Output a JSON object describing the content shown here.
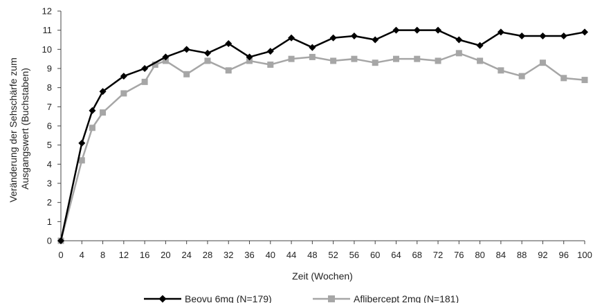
{
  "chart_data": {
    "type": "line",
    "title": "",
    "xlabel": "Zeit (Wochen)",
    "ylabel_lines": [
      "Veränderung der Sehschärfe zum",
      "Ausgangswert (Buchstaben)"
    ],
    "xlim": [
      0,
      100
    ],
    "ylim": [
      0,
      12
    ],
    "x_ticks": [
      0,
      4,
      8,
      12,
      16,
      20,
      24,
      28,
      32,
      36,
      40,
      44,
      48,
      52,
      56,
      60,
      64,
      68,
      72,
      76,
      80,
      84,
      88,
      92,
      96,
      100
    ],
    "y_ticks": [
      0,
      1,
      2,
      3,
      4,
      5,
      6,
      7,
      8,
      9,
      10,
      11,
      12
    ],
    "grid": false,
    "legend_position": "bottom",
    "series": [
      {
        "name": "Beovu 6mg (N=179)",
        "color": "#000000",
        "marker": "diamond",
        "x": [
          0,
          4,
          6,
          8,
          12,
          16,
          20,
          24,
          28,
          32,
          36,
          40,
          44,
          48,
          52,
          56,
          60,
          64,
          68,
          72,
          76,
          80,
          84,
          88,
          92,
          96,
          100
        ],
        "y": [
          0,
          5.1,
          6.8,
          7.8,
          8.6,
          9.0,
          9.6,
          10.0,
          9.8,
          10.3,
          9.6,
          9.9,
          10.6,
          10.1,
          10.6,
          10.7,
          10.5,
          11.0,
          11.0,
          11.0,
          10.5,
          10.2,
          10.9,
          10.7,
          10.7,
          10.7,
          10.9
        ]
      },
      {
        "name": "Aflibercept 2mg (N=181)",
        "color": "#a6a6a6",
        "marker": "square",
        "x": [
          0,
          4,
          6,
          8,
          12,
          16,
          18,
          20,
          24,
          28,
          32,
          36,
          40,
          44,
          48,
          52,
          56,
          60,
          64,
          68,
          72,
          76,
          80,
          84,
          88,
          92,
          96,
          100
        ],
        "y": [
          0,
          4.2,
          5.9,
          6.7,
          7.7,
          8.3,
          9.2,
          9.4,
          8.7,
          9.4,
          8.9,
          9.4,
          9.2,
          9.5,
          9.6,
          9.4,
          9.5,
          9.3,
          9.5,
          9.5,
          9.4,
          9.8,
          9.4,
          8.9,
          8.6,
          9.3,
          8.5,
          8.4
        ]
      }
    ]
  }
}
